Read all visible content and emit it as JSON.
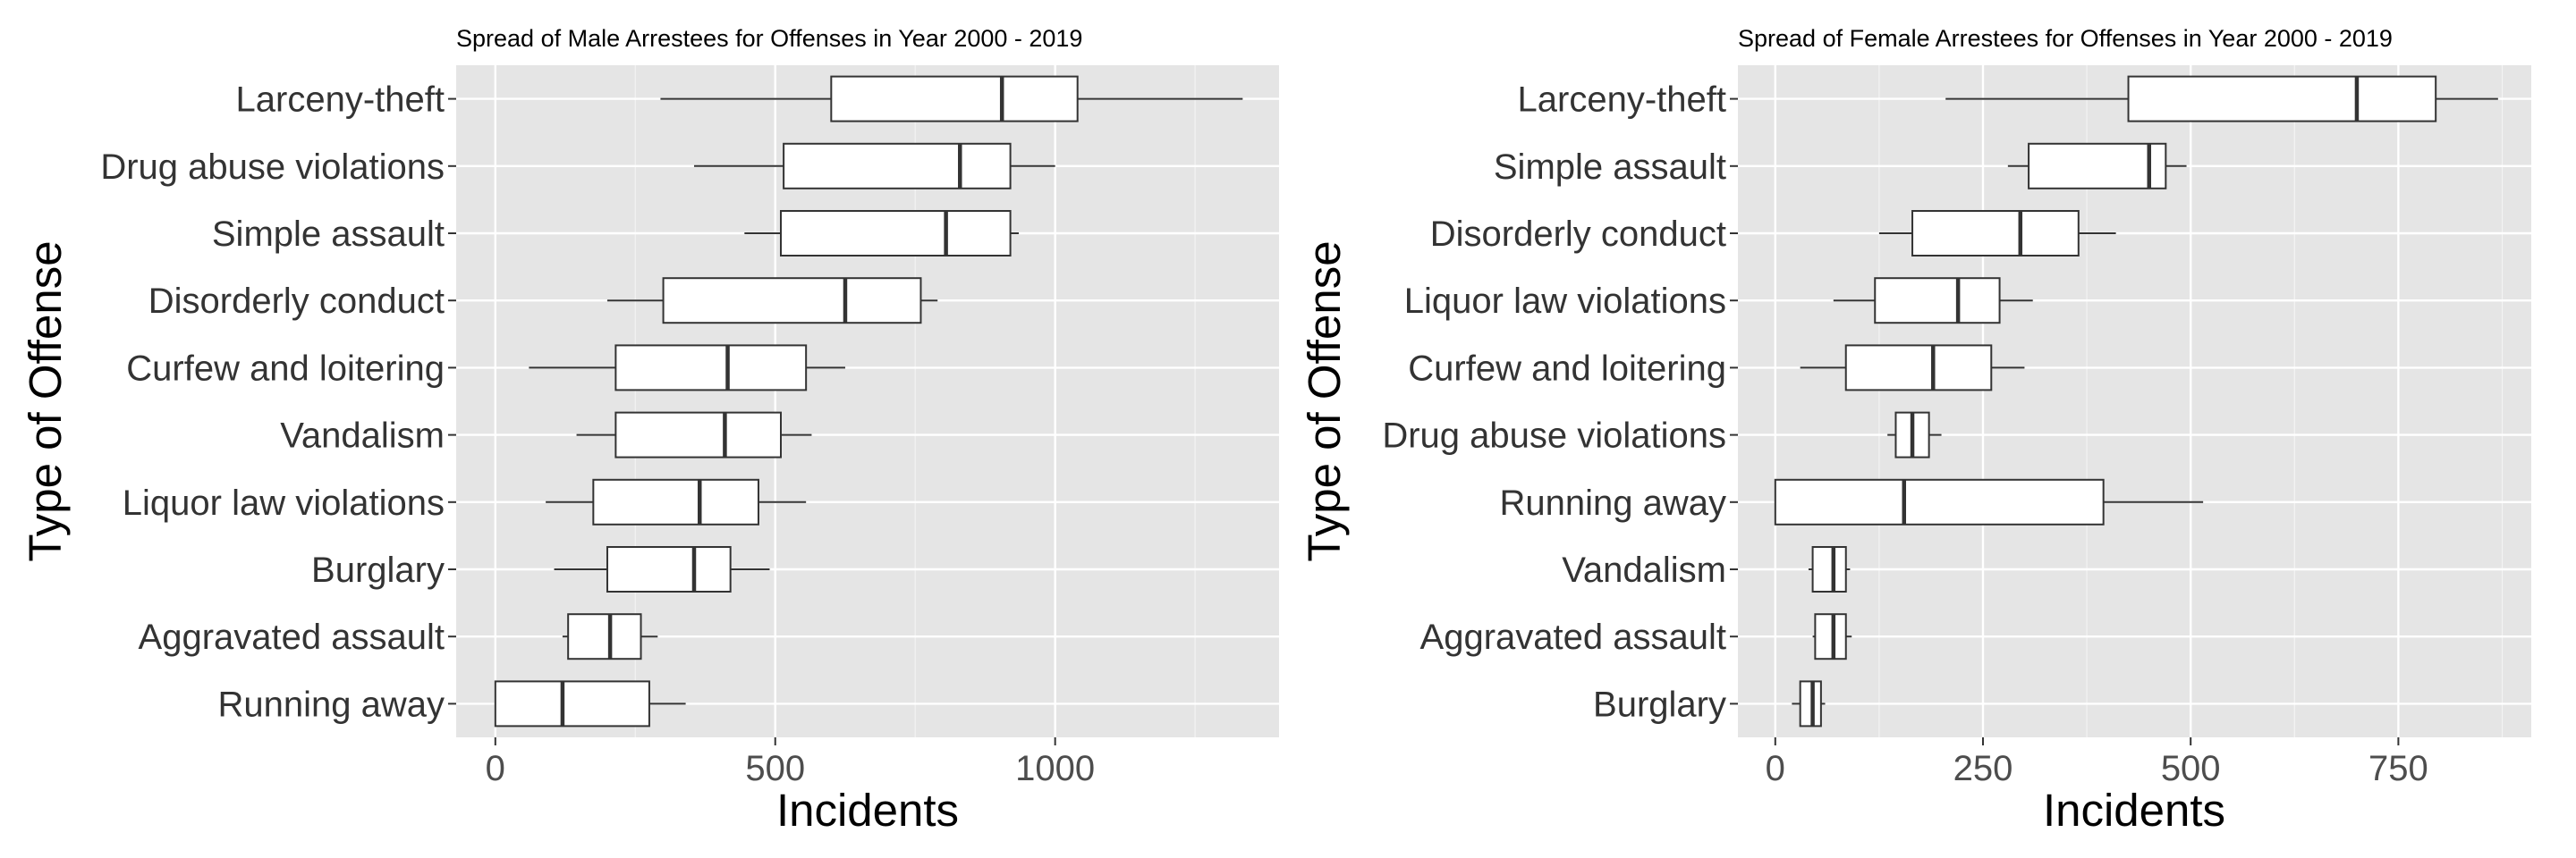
{
  "colors": {
    "panel_background": "#e5e5e5",
    "grid_major": "#ffffff",
    "box_fill": "#ffffff",
    "box_stroke": "#333333",
    "text": "#333333"
  },
  "chart_data": [
    {
      "type": "box",
      "title": "Spread of Male Arrestees for Offenses in Year 2000 - 2019",
      "xlabel": "Incidents",
      "ylabel": "Type of Offense",
      "xlim": [
        -70,
        1400
      ],
      "xticks": [
        0,
        500,
        1000
      ],
      "x_tick_labels": [
        "0",
        "500",
        "1000"
      ],
      "grid": true,
      "legend": "none",
      "categories": [
        "Larceny-theft",
        "Drug abuse violations",
        "Simple assault",
        "Disorderly conduct",
        "Curfew and loitering",
        "Vandalism",
        "Liquor law violations",
        "Burglary",
        "Aggravated assault",
        "Running away"
      ],
      "boxes": [
        {
          "min": 295,
          "q1": 600,
          "median": 905,
          "q3": 1040,
          "max": 1335
        },
        {
          "min": 355,
          "q1": 515,
          "median": 830,
          "q3": 920,
          "max": 1000
        },
        {
          "min": 445,
          "q1": 510,
          "median": 805,
          "q3": 920,
          "max": 935
        },
        {
          "min": 200,
          "q1": 300,
          "median": 625,
          "q3": 760,
          "max": 790
        },
        {
          "min": 60,
          "q1": 215,
          "median": 415,
          "q3": 555,
          "max": 625
        },
        {
          "min": 145,
          "q1": 215,
          "median": 410,
          "q3": 510,
          "max": 565
        },
        {
          "min": 90,
          "q1": 175,
          "median": 365,
          "q3": 470,
          "max": 555
        },
        {
          "min": 105,
          "q1": 200,
          "median": 355,
          "q3": 420,
          "max": 490
        },
        {
          "min": 120,
          "q1": 130,
          "median": 205,
          "q3": 260,
          "max": 290
        },
        {
          "min": 0,
          "q1": 0,
          "median": 120,
          "q3": 275,
          "max": 340
        }
      ]
    },
    {
      "type": "box",
      "title": "Spread of Female Arrestees for Offenses in Year 2000 - 2019",
      "xlabel": "Incidents",
      "ylabel": "Type of Offense",
      "xlim": [
        -45,
        910
      ],
      "xticks": [
        0,
        250,
        500,
        750
      ],
      "x_tick_labels": [
        "0",
        "250",
        "500",
        "750"
      ],
      "grid": true,
      "legend": "none",
      "categories": [
        "Larceny-theft",
        "Simple assault",
        "Disorderly conduct",
        "Liquor law violations",
        "Curfew and loitering",
        "Drug abuse violations",
        "Running away",
        "Vandalism",
        "Aggravated assault",
        "Burglary"
      ],
      "boxes": [
        {
          "min": 205,
          "q1": 425,
          "median": 700,
          "q3": 795,
          "max": 870
        },
        {
          "min": 280,
          "q1": 305,
          "median": 450,
          "q3": 470,
          "max": 495
        },
        {
          "min": 125,
          "q1": 165,
          "median": 295,
          "q3": 365,
          "max": 410
        },
        {
          "min": 70,
          "q1": 120,
          "median": 220,
          "q3": 270,
          "max": 310
        },
        {
          "min": 30,
          "q1": 85,
          "median": 190,
          "q3": 260,
          "max": 300
        },
        {
          "min": 135,
          "q1": 145,
          "median": 165,
          "q3": 185,
          "max": 200
        },
        {
          "min": 0,
          "q1": 0,
          "median": 155,
          "q3": 395,
          "max": 515
        },
        {
          "min": 40,
          "q1": 45,
          "median": 70,
          "q3": 85,
          "max": 90
        },
        {
          "min": 45,
          "q1": 48,
          "median": 70,
          "q3": 85,
          "max": 92
        },
        {
          "min": 20,
          "q1": 30,
          "median": 45,
          "q3": 55,
          "max": 60
        }
      ]
    }
  ]
}
